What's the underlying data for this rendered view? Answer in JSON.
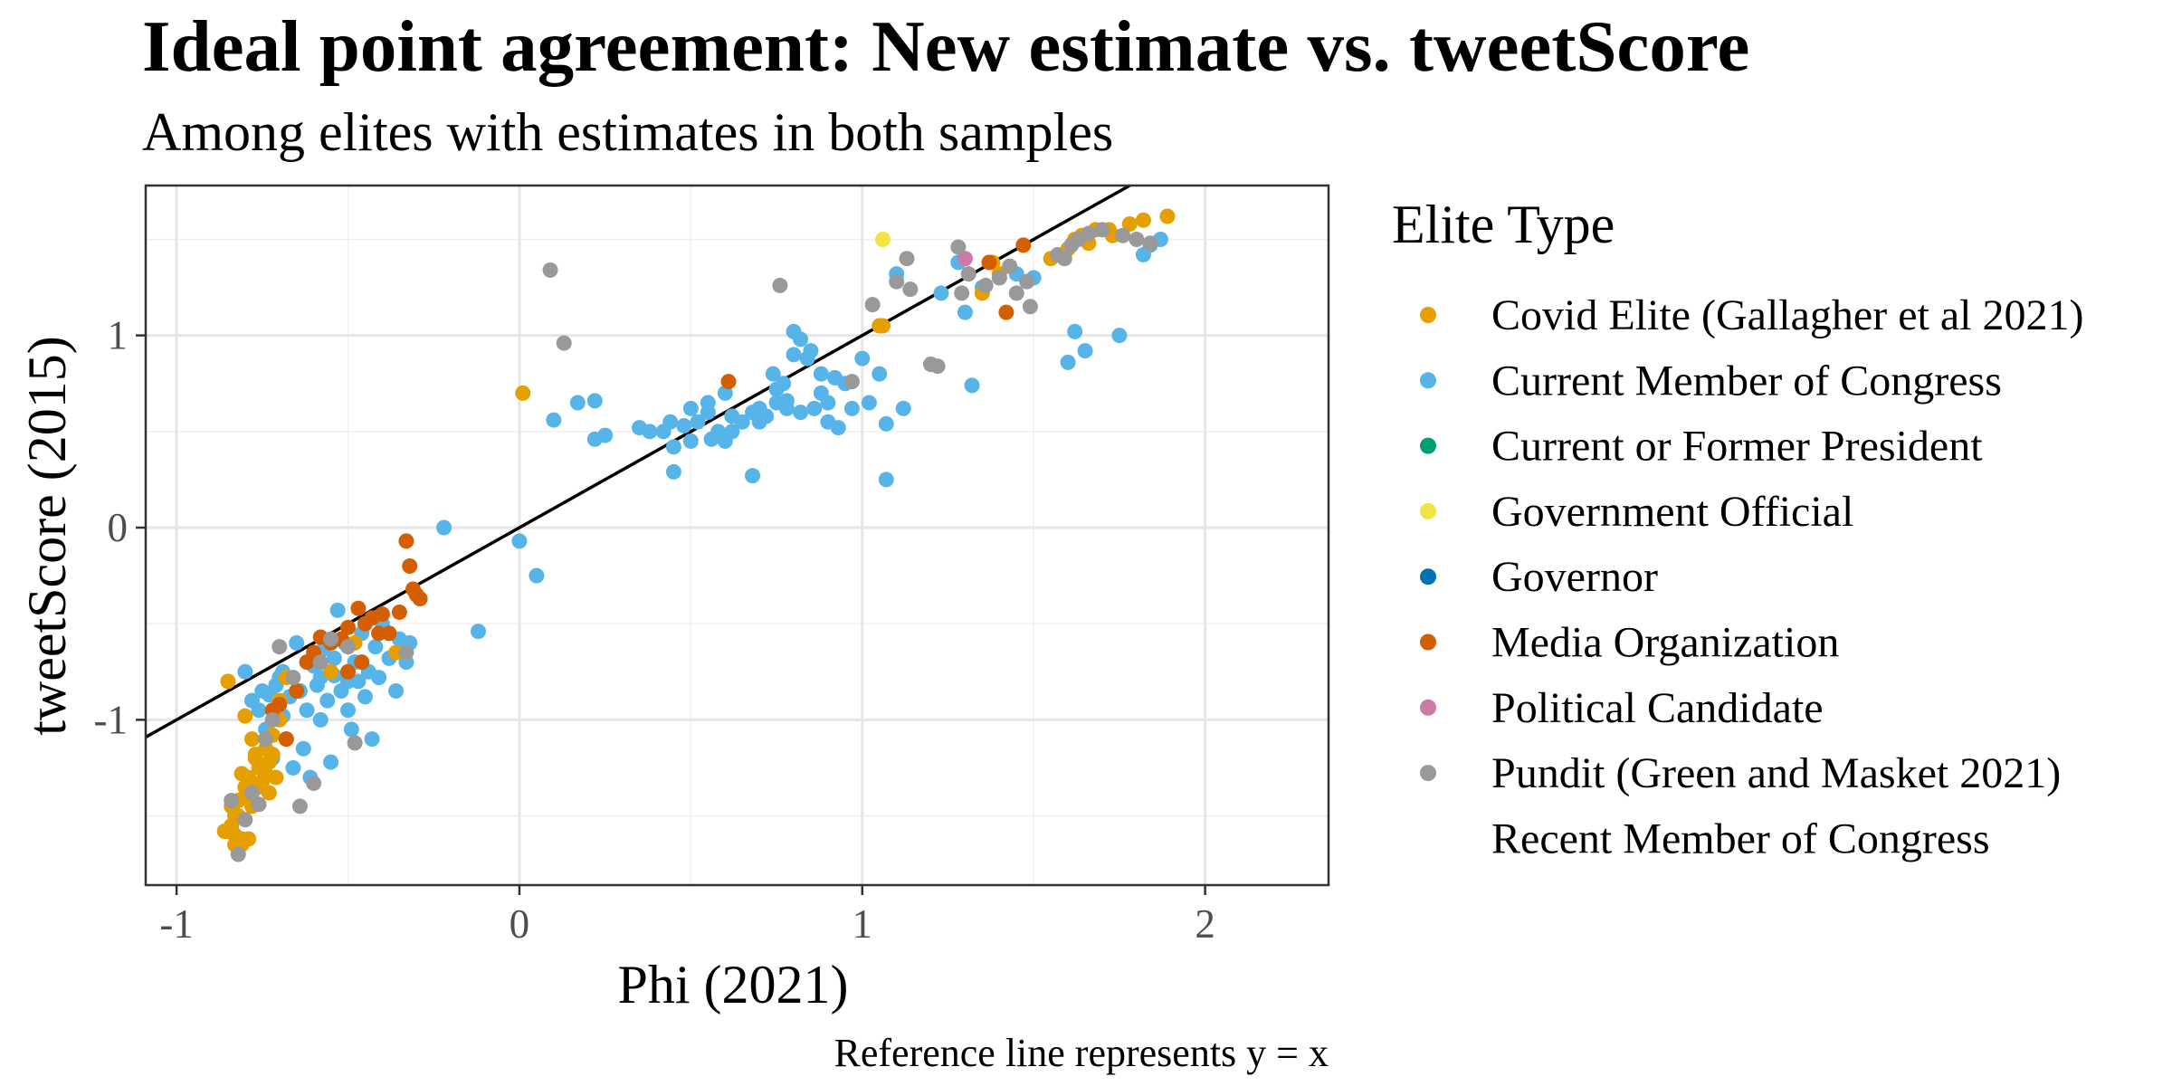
{
  "chart_data": {
    "type": "scatter",
    "title": "Ideal point agreement: New estimate vs. tweetScore",
    "subtitle": "Among elites with estimates in both samples",
    "xlabel": "Phi (2021)",
    "ylabel": "tweetScore (2015)",
    "caption": "Reference line represents y = x",
    "xlim": [
      -1.09,
      2.36
    ],
    "ylim": [
      -1.86,
      1.78
    ],
    "x_ticks": [
      -1,
      0,
      1,
      2
    ],
    "x_tick_labels": [
      "-1",
      "0",
      "1",
      "2"
    ],
    "y_ticks": [
      -1,
      0,
      1
    ],
    "y_tick_labels": [
      "-1",
      "0",
      "1"
    ],
    "grid": true,
    "reference_line": {
      "slope": 1,
      "intercept": 0
    },
    "legend": {
      "title": "Elite Type",
      "position": "right",
      "entries": [
        {
          "label": "Covid Elite (Gallagher et al 2021)",
          "color": "#E69F00"
        },
        {
          "label": "Current Member of Congress",
          "color": "#56B4E9"
        },
        {
          "label": "Current or Former President",
          "color": "#009E73"
        },
        {
          "label": "Government Official",
          "color": "#F0E442"
        },
        {
          "label": "Governor",
          "color": "#0072B2"
        },
        {
          "label": "Media Organization",
          "color": "#D55E00"
        },
        {
          "label": "Political Candidate",
          "color": "#CC79A7"
        },
        {
          "label": "Pundit (Green and Masket 2021)",
          "color": "#999999"
        },
        {
          "label": "Recent Member of Congress",
          "color": null
        }
      ]
    },
    "series": [
      {
        "name": "Current Member of Congress",
        "color": "#56B4E9",
        "points": [
          [
            -0.8,
            -0.75
          ],
          [
            -0.78,
            -0.9
          ],
          [
            -0.76,
            -0.95
          ],
          [
            -0.74,
            -1.05
          ],
          [
            -0.73,
            -0.87
          ],
          [
            -0.72,
            -1.2
          ],
          [
            -0.7,
            -0.78
          ],
          [
            -0.69,
            -0.98
          ],
          [
            -0.68,
            -1.1
          ],
          [
            -0.67,
            -0.88
          ],
          [
            -0.66,
            -1.25
          ],
          [
            -0.65,
            -0.6
          ],
          [
            -0.64,
            -0.85
          ],
          [
            -0.63,
            -1.15
          ],
          [
            -0.62,
            -0.95
          ],
          [
            -0.61,
            -1.3
          ],
          [
            -0.6,
            -0.72
          ],
          [
            -0.59,
            -0.82
          ],
          [
            -0.58,
            -1.0
          ],
          [
            -0.57,
            -0.63
          ],
          [
            -0.56,
            -0.9
          ],
          [
            -0.55,
            -1.22
          ],
          [
            -0.54,
            -0.77
          ],
          [
            -0.53,
            -0.43
          ],
          [
            -0.52,
            -0.85
          ],
          [
            -0.51,
            -0.6
          ],
          [
            -0.5,
            -0.95
          ],
          [
            -0.49,
            -1.05
          ],
          [
            -0.48,
            -0.7
          ],
          [
            -0.47,
            -0.8
          ],
          [
            -0.46,
            -0.55
          ],
          [
            -0.45,
            -0.88
          ],
          [
            -0.44,
            -0.75
          ],
          [
            -0.43,
            -1.1
          ],
          [
            -0.42,
            -0.62
          ],
          [
            -0.41,
            -0.78
          ],
          [
            -0.4,
            -0.5
          ],
          [
            -0.38,
            -0.68
          ],
          [
            -0.36,
            -0.85
          ],
          [
            -0.35,
            -0.58
          ],
          [
            -0.33,
            -0.7
          ],
          [
            -0.32,
            -0.6
          ],
          [
            -0.75,
            -0.85
          ],
          [
            -0.71,
            -0.82
          ],
          [
            -0.69,
            -0.75
          ],
          [
            -0.58,
            -0.78
          ],
          [
            -0.54,
            -0.68
          ],
          [
            -0.5,
            -0.8
          ],
          [
            -0.22,
            0.0
          ],
          [
            -0.12,
            -0.54
          ],
          [
            0.0,
            -0.07
          ],
          [
            0.05,
            -0.25
          ],
          [
            0.1,
            0.56
          ],
          [
            0.17,
            0.65
          ],
          [
            0.22,
            0.46
          ],
          [
            0.25,
            0.48
          ],
          [
            0.22,
            0.66
          ],
          [
            0.35,
            0.52
          ],
          [
            0.38,
            0.5
          ],
          [
            0.42,
            0.5
          ],
          [
            0.44,
            0.55
          ],
          [
            0.45,
            0.29
          ],
          [
            0.48,
            0.53
          ],
          [
            0.5,
            0.45
          ],
          [
            0.52,
            0.55
          ],
          [
            0.55,
            0.6
          ],
          [
            0.58,
            0.5
          ],
          [
            0.6,
            0.45
          ],
          [
            0.62,
            0.5
          ],
          [
            0.65,
            0.55
          ],
          [
            0.68,
            0.6
          ],
          [
            0.7,
            0.62
          ],
          [
            0.72,
            0.58
          ],
          [
            0.74,
            0.8
          ],
          [
            0.75,
            0.65
          ],
          [
            0.77,
            0.75
          ],
          [
            0.78,
            0.62
          ],
          [
            0.8,
            1.02
          ],
          [
            0.82,
            0.6
          ],
          [
            0.84,
            0.88
          ],
          [
            0.86,
            0.62
          ],
          [
            0.88,
            0.8
          ],
          [
            0.9,
            0.65
          ],
          [
            0.93,
            0.52
          ],
          [
            0.95,
            0.75
          ],
          [
            0.97,
            0.62
          ],
          [
            1.0,
            0.88
          ],
          [
            1.02,
            0.65
          ],
          [
            1.05,
            0.8
          ],
          [
            1.07,
            0.54
          ],
          [
            1.1,
            1.32
          ],
          [
            1.12,
            0.62
          ],
          [
            1.2,
            0.85
          ],
          [
            1.23,
            1.22
          ],
          [
            1.28,
            1.38
          ],
          [
            1.3,
            1.12
          ],
          [
            1.32,
            0.74
          ],
          [
            1.35,
            1.25
          ],
          [
            1.4,
            1.3
          ],
          [
            1.45,
            1.32
          ],
          [
            1.5,
            1.3
          ],
          [
            1.6,
            0.86
          ],
          [
            1.62,
            1.02
          ],
          [
            1.65,
            0.92
          ],
          [
            1.75,
            1.0
          ],
          [
            1.82,
            1.42
          ],
          [
            1.84,
            1.47
          ],
          [
            1.87,
            1.5
          ],
          [
            1.07,
            0.25
          ],
          [
            0.68,
            0.27
          ],
          [
            0.8,
            0.9
          ],
          [
            0.92,
            0.78
          ],
          [
            0.75,
            0.72
          ],
          [
            0.7,
            0.55
          ],
          [
            0.62,
            0.58
          ],
          [
            0.56,
            0.46
          ],
          [
            0.5,
            0.62
          ],
          [
            0.82,
            0.98
          ],
          [
            0.85,
            0.92
          ],
          [
            0.88,
            0.7
          ],
          [
            0.9,
            0.55
          ],
          [
            0.78,
            0.66
          ],
          [
            0.6,
            0.7
          ],
          [
            0.45,
            0.42
          ],
          [
            0.55,
            0.65
          ]
        ]
      },
      {
        "name": "Covid Elite (Gallagher et al 2021)",
        "color": "#E69F00",
        "points": [
          [
            -0.85,
            -0.8
          ],
          [
            -0.85,
            -1.58
          ],
          [
            -0.84,
            -1.55
          ],
          [
            -0.83,
            -1.6
          ],
          [
            -0.82,
            -1.5
          ],
          [
            -0.81,
            -1.65
          ],
          [
            -0.8,
            -1.4
          ],
          [
            -0.79,
            -1.3
          ],
          [
            -0.78,
            -1.45
          ],
          [
            -0.77,
            -1.2
          ],
          [
            -0.76,
            -1.35
          ],
          [
            -0.75,
            -1.25
          ],
          [
            -0.74,
            -1.15
          ],
          [
            -0.73,
            -1.38
          ],
          [
            -0.72,
            -1.08
          ],
          [
            -0.71,
            -1.3
          ],
          [
            -0.7,
            -1.0
          ],
          [
            -0.8,
            -0.98
          ],
          [
            -0.79,
            -1.62
          ],
          [
            -0.81,
            -1.28
          ],
          [
            -0.83,
            -1.5
          ],
          [
            -0.77,
            -1.18
          ],
          [
            -0.75,
            -1.32
          ],
          [
            -0.73,
            -1.22
          ],
          [
            -0.78,
            -1.1
          ],
          [
            -0.8,
            -1.35
          ],
          [
            -0.82,
            -1.42
          ],
          [
            -0.76,
            -1.25
          ],
          [
            -0.74,
            -1.28
          ],
          [
            -0.72,
            -1.18
          ],
          [
            -0.84,
            -1.45
          ],
          [
            -0.86,
            -1.58
          ],
          [
            -0.83,
            -1.65
          ],
          [
            -0.81,
            -1.62
          ],
          [
            -0.7,
            -0.9
          ],
          [
            -0.68,
            -0.78
          ],
          [
            -0.55,
            -0.75
          ],
          [
            -0.48,
            -0.6
          ],
          [
            -0.36,
            -0.65
          ],
          [
            0.01,
            0.7
          ],
          [
            1.05,
            1.05
          ],
          [
            1.06,
            1.05
          ],
          [
            1.35,
            1.22
          ],
          [
            1.4,
            1.32
          ],
          [
            1.38,
            1.38
          ],
          [
            1.55,
            1.4
          ],
          [
            1.6,
            1.45
          ],
          [
            1.62,
            1.5
          ],
          [
            1.64,
            1.52
          ],
          [
            1.66,
            1.48
          ],
          [
            1.68,
            1.55
          ],
          [
            1.72,
            1.55
          ],
          [
            1.73,
            1.52
          ],
          [
            1.78,
            1.58
          ],
          [
            1.82,
            1.6
          ],
          [
            1.89,
            1.62
          ]
        ]
      },
      {
        "name": "Government Official",
        "color": "#F0E442",
        "points": [
          [
            1.06,
            1.5
          ]
        ]
      },
      {
        "name": "Media Organization",
        "color": "#D55E00",
        "points": [
          [
            -0.33,
            -0.07
          ],
          [
            -0.32,
            -0.2
          ],
          [
            -0.31,
            -0.32
          ],
          [
            -0.3,
            -0.35
          ],
          [
            -0.29,
            -0.37
          ],
          [
            -0.35,
            -0.44
          ],
          [
            -0.4,
            -0.45
          ],
          [
            -0.43,
            -0.47
          ],
          [
            -0.45,
            -0.5
          ],
          [
            -0.47,
            -0.42
          ],
          [
            -0.5,
            -0.52
          ],
          [
            -0.52,
            -0.58
          ],
          [
            -0.55,
            -0.6
          ],
          [
            -0.58,
            -0.57
          ],
          [
            -0.6,
            -0.65
          ],
          [
            -0.62,
            -0.7
          ],
          [
            -0.65,
            -0.85
          ],
          [
            -0.7,
            -0.92
          ],
          [
            -0.72,
            -0.95
          ],
          [
            -0.68,
            -1.1
          ],
          [
            -0.46,
            -0.7
          ],
          [
            -0.41,
            -0.55
          ],
          [
            -0.38,
            -0.55
          ],
          [
            -0.5,
            -0.75
          ],
          [
            0.61,
            0.76
          ],
          [
            1.37,
            1.38
          ],
          [
            1.42,
            1.12
          ],
          [
            1.47,
            1.47
          ]
        ]
      },
      {
        "name": "Political Candidate",
        "color": "#CC79A7",
        "points": [
          [
            1.3,
            1.4
          ]
        ]
      },
      {
        "name": "Pundit (Green and Masket 2021)",
        "color": "#999999",
        "points": [
          [
            0.09,
            1.34
          ],
          [
            0.13,
            0.96
          ],
          [
            0.76,
            1.26
          ],
          [
            0.97,
            0.76
          ],
          [
            1.03,
            1.16
          ],
          [
            1.1,
            1.28
          ],
          [
            1.13,
            1.4
          ],
          [
            1.14,
            1.24
          ],
          [
            1.2,
            0.85
          ],
          [
            1.22,
            0.84
          ],
          [
            1.28,
            1.46
          ],
          [
            1.29,
            1.22
          ],
          [
            1.31,
            1.32
          ],
          [
            1.36,
            1.26
          ],
          [
            1.4,
            1.3
          ],
          [
            1.43,
            1.36
          ],
          [
            1.45,
            1.22
          ],
          [
            1.48,
            1.28
          ],
          [
            1.49,
            1.15
          ],
          [
            1.57,
            1.42
          ],
          [
            1.59,
            1.4
          ],
          [
            1.61,
            1.47
          ],
          [
            1.63,
            1.5
          ],
          [
            1.66,
            1.53
          ],
          [
            1.7,
            1.55
          ],
          [
            1.76,
            1.52
          ],
          [
            1.8,
            1.5
          ],
          [
            1.84,
            1.48
          ],
          [
            -0.33,
            -0.65
          ],
          [
            -0.48,
            -1.12
          ],
          [
            -0.5,
            -0.62
          ],
          [
            -0.55,
            -0.58
          ],
          [
            -0.58,
            -0.7
          ],
          [
            -0.6,
            -1.33
          ],
          [
            -0.64,
            -1.45
          ],
          [
            -0.66,
            -0.78
          ],
          [
            -0.7,
            -0.62
          ],
          [
            -0.72,
            -1.0
          ],
          [
            -0.74,
            -1.1
          ],
          [
            -0.76,
            -1.44
          ],
          [
            -0.78,
            -1.38
          ],
          [
            -0.8,
            -1.52
          ],
          [
            -0.82,
            -1.7
          ],
          [
            -0.84,
            -1.42
          ]
        ]
      }
    ]
  }
}
